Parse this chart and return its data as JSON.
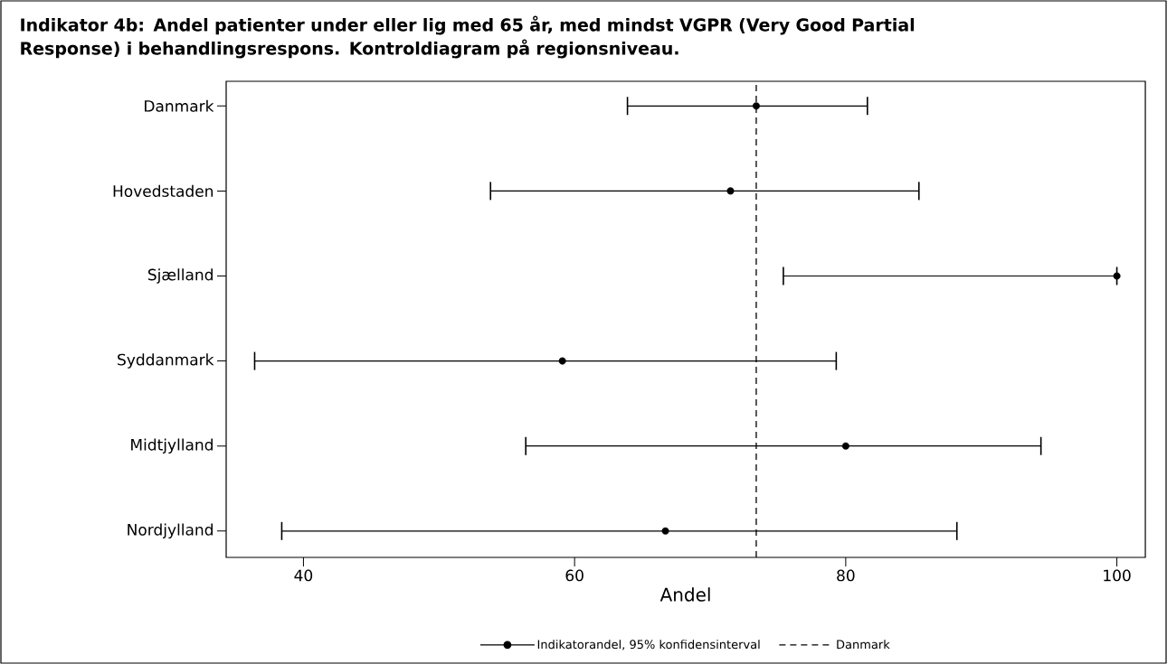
{
  "chart_data": {
    "type": "scatter",
    "orientation": "horizontal",
    "title": "Indikator 4b: Andel patienter under eller lig med 65 år, med mindst VGPR (Very Good Partial Response) i behandlingsrespons. Kontroldiagram på regionsniveau.",
    "xlabel": "Andel",
    "categories": [
      "Danmark",
      "Hovedstaden",
      "Sjælland",
      "Syddanmark",
      "Midtjylland",
      "Nordjylland"
    ],
    "series": [
      {
        "name": "Indikatorandel, 95% konfidensinterval",
        "color": "#000000",
        "values": [
          73.4,
          71.5,
          100,
          59.1,
          80.0,
          66.7
        ],
        "errors": [
          [
            63.9,
            81.6
          ],
          [
            53.8,
            85.4
          ],
          [
            75.4,
            100
          ],
          [
            36.4,
            79.3
          ],
          [
            56.4,
            94.4
          ],
          [
            38.4,
            88.2
          ]
        ]
      }
    ],
    "ref_lines": [
      {
        "axis": "x",
        "value": 73.4,
        "label": "Danmark",
        "color": "#000000",
        "line_style": "dashed"
      }
    ],
    "xlim": [
      34.3,
      102.1
    ],
    "xticks": [
      40,
      60,
      80,
      100
    ],
    "marker": "circle",
    "legend": "bottom",
    "grid": false
  }
}
